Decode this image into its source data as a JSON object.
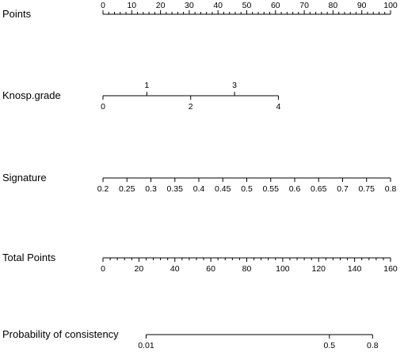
{
  "chart_data": {
    "type": "nomogram",
    "rows": [
      {
        "id": "points",
        "label": "Points",
        "range": [
          0,
          100
        ],
        "minor_step": 2,
        "labels_position": "above",
        "tick_labels": [
          "0",
          "10",
          "20",
          "30",
          "40",
          "50",
          "60",
          "70",
          "80",
          "90",
          "100"
        ],
        "tick_values": [
          0,
          10,
          20,
          30,
          40,
          50,
          60,
          70,
          80,
          90,
          100
        ]
      },
      {
        "id": "knosp",
        "label": "Knosp.grade",
        "range": [
          0,
          4
        ],
        "scale_position": {
          "start_points": 0,
          "end_points": 61
        },
        "ticks_above": [
          {
            "label": "1",
            "value": 1
          },
          {
            "label": "3",
            "value": 3
          }
        ],
        "ticks_below": [
          {
            "label": "0",
            "value": 0
          },
          {
            "label": "2",
            "value": 2
          },
          {
            "label": "4",
            "value": 4
          }
        ]
      },
      {
        "id": "signature",
        "label": "Signature",
        "range": [
          0.2,
          0.8
        ],
        "labels_position": "below",
        "tick_labels": [
          "0.2",
          "0.25",
          "0.3",
          "0.35",
          "0.4",
          "0.45",
          "0.5",
          "0.55",
          "0.6",
          "0.65",
          "0.7",
          "0.75",
          "0.8"
        ],
        "tick_values": [
          0.2,
          0.25,
          0.3,
          0.35,
          0.4,
          0.45,
          0.5,
          0.55,
          0.6,
          0.65,
          0.7,
          0.75,
          0.8
        ]
      },
      {
        "id": "total",
        "label": "Total Points",
        "range": [
          0,
          160
        ],
        "minor_step": 4,
        "labels_position": "below",
        "tick_labels": [
          "0",
          "20",
          "40",
          "60",
          "80",
          "100",
          "120",
          "140",
          "160"
        ],
        "tick_values": [
          0,
          20,
          40,
          60,
          80,
          100,
          120,
          140,
          160
        ]
      },
      {
        "id": "probability",
        "label": "Probability of consistency",
        "scale_position": {
          "start_total": 24,
          "end_total": 150
        },
        "labels_position": "below",
        "tick_labels": [
          "0.01",
          "0.5",
          "0.8"
        ],
        "tick_total_points": [
          24,
          126,
          150
        ]
      }
    ]
  }
}
